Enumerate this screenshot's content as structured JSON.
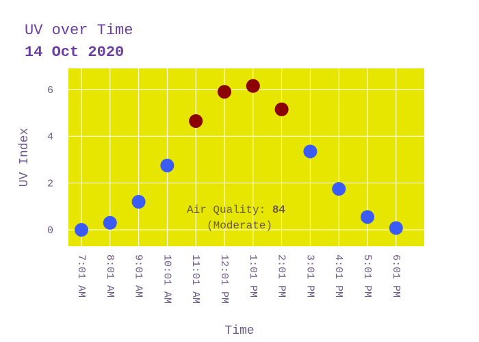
{
  "chart_data": {
    "type": "scatter",
    "title": "UV over Time",
    "subtitle": "14 Oct 2020",
    "xlabel": "Time",
    "ylabel": "UV Index",
    "categories": [
      "7:01 AM",
      "8:01 AM",
      "9:01 AM",
      "10:01 AM",
      "11:01 AM",
      "12:01 PM",
      "1:01 PM",
      "2:01 PM",
      "3:01 PM",
      "4:01 PM",
      "5:01 PM",
      "6:01 PM"
    ],
    "values": [
      0.0,
      0.3,
      1.2,
      2.75,
      4.65,
      5.9,
      6.15,
      5.15,
      3.35,
      1.75,
      0.55,
      0.08
    ],
    "ylim": [
      -0.7,
      6.9
    ],
    "yticks": [
      0,
      2,
      4,
      6
    ],
    "grid": true,
    "high_threshold": 3.5,
    "colors": {
      "plot_background": "#e6e600",
      "grid": "#ffffff",
      "point_normal": "#3b5bf5",
      "point_high": "#8b0000",
      "title": "#6b3fa0",
      "axis_text": "#6b5a87",
      "annotation": "#6b5a4a"
    },
    "annotation": {
      "label": "Air Quality: ",
      "value": "84",
      "status": "(Moderate)"
    }
  }
}
